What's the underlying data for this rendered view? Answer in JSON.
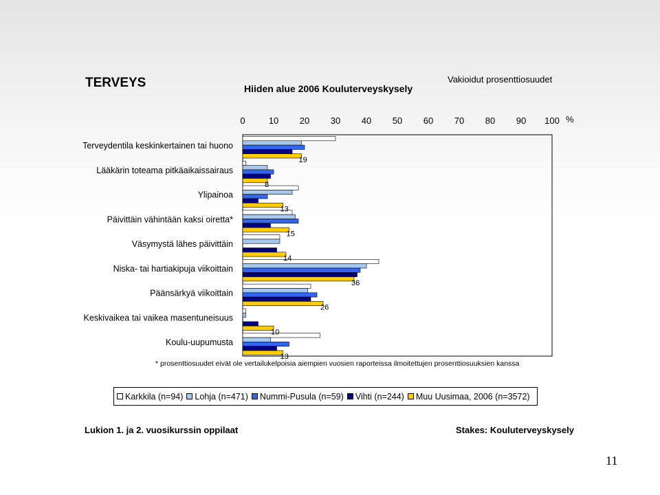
{
  "header": {
    "title": "TERVEYS",
    "subtitle": "Hiiden alue 2006 Kouluterveyskysely",
    "note": "Vakioidut prosenttiosuudet"
  },
  "footnote": "* prosenttiosuudet eivät ole vertailukelpoisia aiempien vuosien raporteissa ilmoitettujen prosenttiosuuksien kanssa",
  "footer": {
    "left": "Lukion 1. ja 2. vuosikurssin oppilaat",
    "right": "Stakes: Kouluterveyskysely",
    "page_number": "11"
  },
  "colors": {
    "Karkkila": "#ffffff",
    "Lohja": "#a6c8ec",
    "Nummi-Pusula": "#3366ee",
    "Vihti": "#000080",
    "Muu Uusimaa": "#ffcc00"
  },
  "chart_data": {
    "type": "bar",
    "orientation": "horizontal",
    "unit_label": "%",
    "xlim": [
      0,
      100
    ],
    "x_ticks": [
      "0",
      "10",
      "20",
      "30",
      "40",
      "50",
      "60",
      "70",
      "80",
      "90",
      "100"
    ],
    "categories": [
      "Terveydentila keskinkertainen tai huono",
      "Lääkärin toteama pitkäaikaissairaus",
      "Ylipainoa",
      "Päivittäin vähintään kaksi oiretta*",
      "Väsymystä lähes päivittäin",
      "Niska- tai hartiakipuja viikoittain",
      "Päänsärkyä viikoittain",
      "Keskivaikea tai vaikea masentuneisuus",
      "Koulu-uupumusta"
    ],
    "series": [
      {
        "name": "Karkkila (n=94)",
        "values": [
          30,
          1,
          18,
          16,
          12,
          44,
          22,
          1,
          25
        ]
      },
      {
        "name": "Lohja (n=471)",
        "values": [
          19,
          8,
          16,
          17,
          12,
          40,
          21,
          1,
          9
        ]
      },
      {
        "name": "Nummi-Pusula (n=59)",
        "values": [
          20,
          10,
          8,
          18,
          0,
          38,
          24,
          0,
          15
        ]
      },
      {
        "name": "Vihti (n=244)",
        "values": [
          16,
          9,
          5,
          9,
          11,
          37,
          22,
          5,
          11
        ]
      },
      {
        "name": "Muu Uusimaa, 2006 (n=3572)",
        "values": [
          19,
          8,
          13,
          15,
          14,
          36,
          26,
          10,
          13
        ]
      }
    ],
    "data_labels": [
      "19",
      "8",
      "13",
      "15",
      "14",
      "36",
      "26",
      "10",
      "13"
    ],
    "grid": false,
    "legend_position": "bottom"
  }
}
